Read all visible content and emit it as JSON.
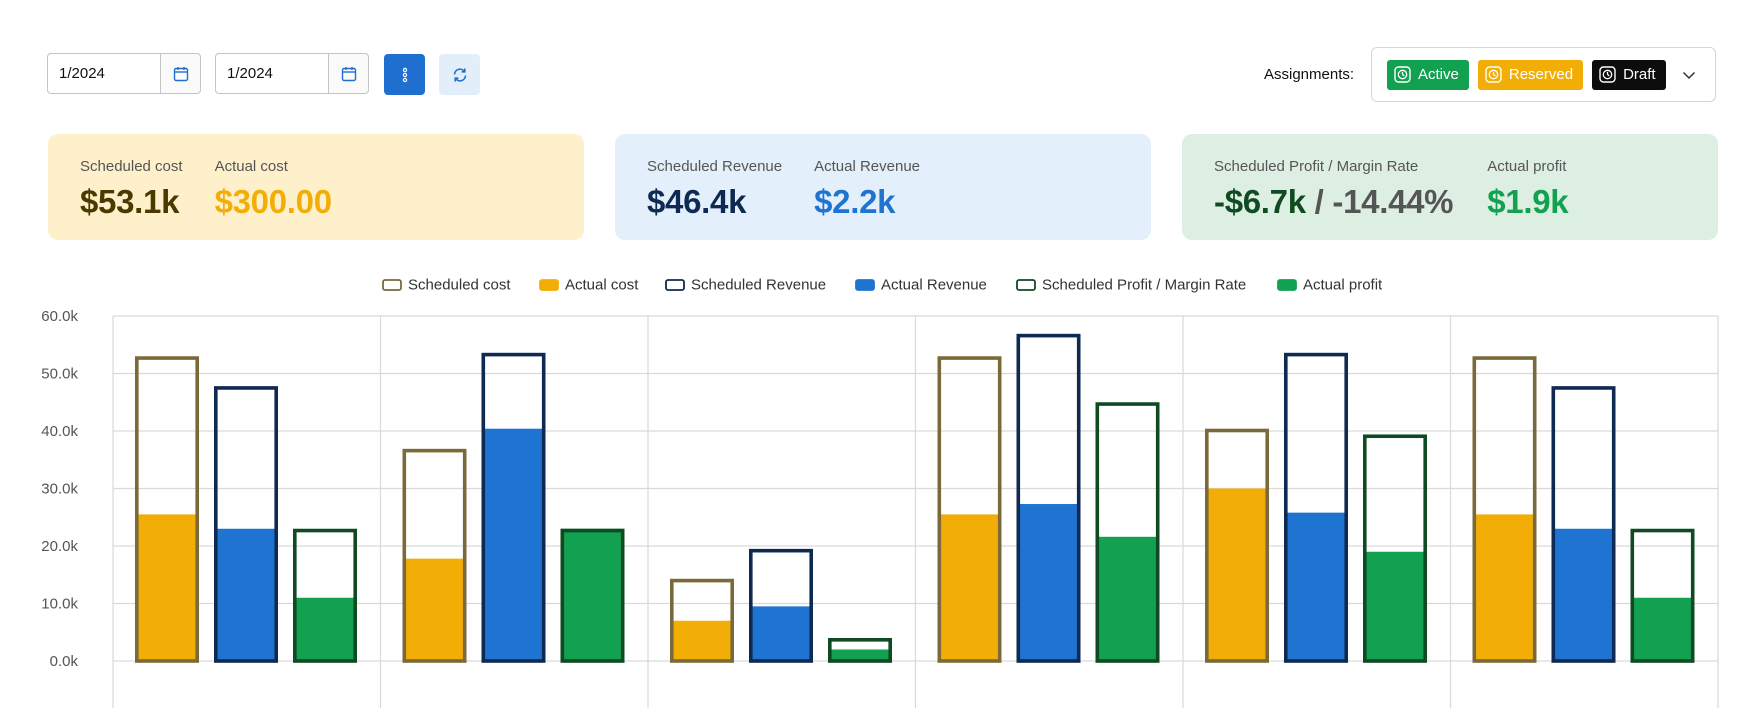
{
  "filters": {
    "start_date": "1/2024",
    "end_date": "1/2024"
  },
  "icons": {
    "calendar": "calendar-icon",
    "more": "more-vertical-icon",
    "refresh": "refresh-icon",
    "tag": "status-icon",
    "dropdown": "chevron-down-icon"
  },
  "assignments": {
    "label": "Assignments:",
    "tags": [
      {
        "label": "Active",
        "color": "#12a150"
      },
      {
        "label": "Reserved",
        "color": "#f2ae07"
      },
      {
        "label": "Draft",
        "color": "#0d0d0d"
      }
    ]
  },
  "summary": {
    "cost": {
      "scheduled_label": "Scheduled cost",
      "scheduled_value": "$53.1k",
      "actual_label": "Actual cost",
      "actual_value": "$300.00"
    },
    "revenue": {
      "scheduled_label": "Scheduled Revenue",
      "scheduled_value": "$46.4k",
      "actual_label": "Actual Revenue",
      "actual_value": "$2.2k"
    },
    "profit": {
      "scheduled_label": "Scheduled Profit / Margin Rate",
      "scheduled_value": "-$6.7k",
      "separator": "/",
      "margin_value": "-14.44%",
      "actual_label": "Actual profit",
      "actual_value": "$1.9k"
    }
  },
  "colors": {
    "cost_scheduled": "#7a6a3a",
    "cost_actual": "#f2ae07",
    "rev_scheduled": "#0f2a52",
    "rev_actual": "#1f74d1",
    "profit_scheduled": "#0f4a22",
    "profit_actual": "#12a150",
    "cost_text_dark": "#4a3a00",
    "rev_text_dark": "#0f2a52",
    "profit_text_dark": "#0f4a22"
  },
  "chart_data": {
    "type": "bar",
    "legend": [
      "Scheduled cost",
      "Actual cost",
      "Scheduled Revenue",
      "Actual Revenue",
      "Scheduled Profit / Margin Rate",
      "Actual profit"
    ],
    "y_ticks": [
      "0.0k",
      "10.0k",
      "20.0k",
      "30.0k",
      "40.0k",
      "50.0k",
      "60.0k"
    ],
    "ylim": [
      0,
      60000
    ],
    "grid": true,
    "groups": [
      {
        "cost_scheduled": 53000,
        "cost_actual": 25500,
        "rev_scheduled": 47800,
        "rev_actual": 23000,
        "profit_scheduled": 23000,
        "profit_actual": 11000
      },
      {
        "cost_scheduled": 36900,
        "cost_actual": 17800,
        "rev_scheduled": 53600,
        "rev_actual": 40400,
        "profit_scheduled": 23000,
        "profit_actual": 23000
      },
      {
        "cost_scheduled": 14300,
        "cost_actual": 7000,
        "rev_scheduled": 19500,
        "rev_actual": 9500,
        "profit_scheduled": 4000,
        "profit_actual": 2000
      },
      {
        "cost_scheduled": 53000,
        "cost_actual": 25500,
        "rev_scheduled": 56900,
        "rev_actual": 27300,
        "profit_scheduled": 45000,
        "profit_actual": 21600
      },
      {
        "cost_scheduled": 40400,
        "cost_actual": 30000,
        "rev_scheduled": 53600,
        "rev_actual": 25800,
        "profit_scheduled": 39400,
        "profit_actual": 19000
      },
      {
        "cost_scheduled": 53000,
        "cost_actual": 25500,
        "rev_scheduled": 47800,
        "rev_actual": 23000,
        "profit_scheduled": 23000,
        "profit_actual": 11000
      }
    ]
  }
}
